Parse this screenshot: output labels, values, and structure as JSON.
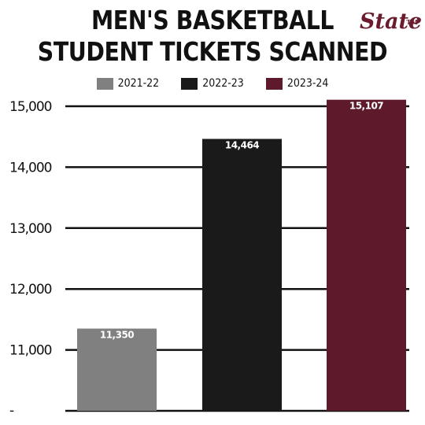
{
  "header": {
    "title_line1": "MEN'S BASKETBALL",
    "title_line2": "STUDENT TICKETS SCANNED",
    "logo_text": "State",
    "logo_mark": "TM"
  },
  "colors": {
    "season_2021_22": "#808080",
    "season_2022_23": "#1a1a1a",
    "season_2023_24": "#5e1a2a"
  },
  "chart_data": {
    "type": "bar",
    "title": "MEN'S BASKETBALL STUDENT TICKETS SCANNED",
    "categories": [
      "2021-22",
      "2022-23",
      "2023-24"
    ],
    "values": [
      11350,
      14464,
      15107
    ],
    "data_labels": [
      "11,350",
      "14,464",
      "15,107"
    ],
    "ylim": [
      10000,
      15000
    ],
    "yticks": [
      11000,
      12000,
      13000,
      14000,
      15000
    ],
    "ytick_labels": [
      "11,000",
      "12,000",
      "13,000",
      "14,000",
      "15,000"
    ],
    "bottom_tick_label": "-",
    "grid": true,
    "legend": "top"
  }
}
